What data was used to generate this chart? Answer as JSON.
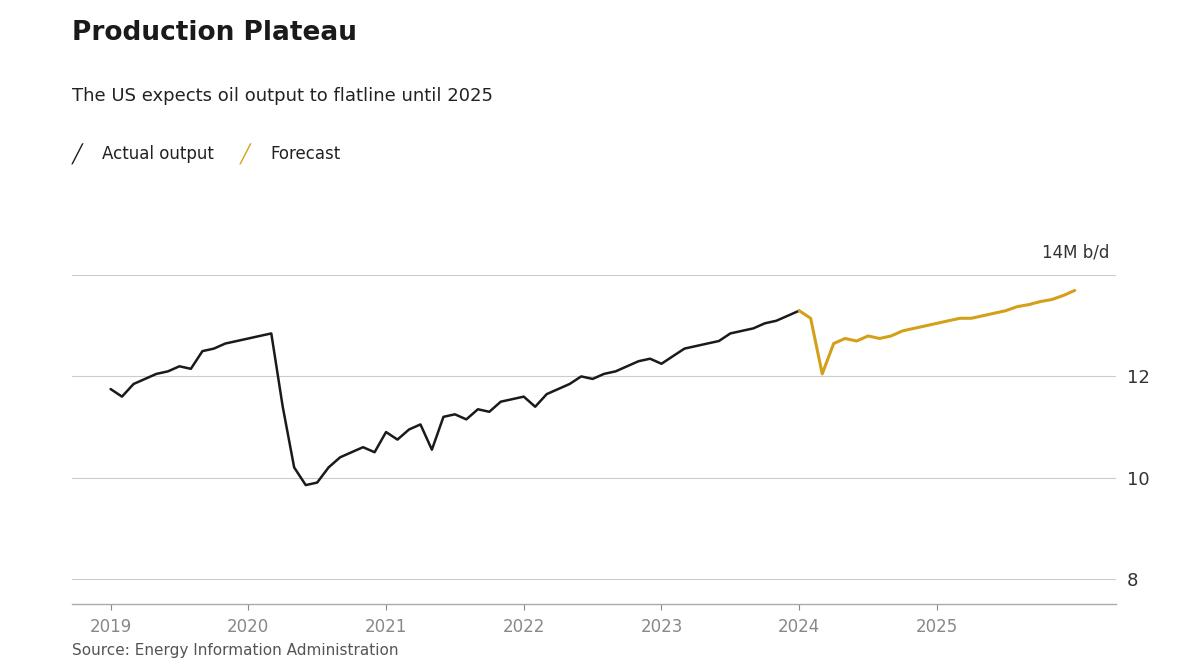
{
  "title": "Production Plateau",
  "subtitle": "The US expects oil output to flatline until 2025",
  "ylabel_text": "14M b/d",
  "source": "Source: Energy Information Administration",
  "legend_actual": "Actual output",
  "legend_forecast": "Forecast",
  "actual_color": "#1a1a1a",
  "forecast_color": "#D4A017",
  "background_color": "#ffffff",
  "grid_color": "#cccccc",
  "ylim": [
    7.5,
    14.8
  ],
  "yticks": [
    8,
    10,
    12
  ],
  "top_gridline_y": 14.0,
  "actual_x": [
    2019.0,
    2019.083,
    2019.167,
    2019.25,
    2019.333,
    2019.417,
    2019.5,
    2019.583,
    2019.667,
    2019.75,
    2019.833,
    2019.917,
    2020.0,
    2020.083,
    2020.167,
    2020.25,
    2020.333,
    2020.417,
    2020.5,
    2020.583,
    2020.667,
    2020.75,
    2020.833,
    2020.917,
    2021.0,
    2021.083,
    2021.167,
    2021.25,
    2021.333,
    2021.417,
    2021.5,
    2021.583,
    2021.667,
    2021.75,
    2021.833,
    2021.917,
    2022.0,
    2022.083,
    2022.167,
    2022.25,
    2022.333,
    2022.417,
    2022.5,
    2022.583,
    2022.667,
    2022.75,
    2022.833,
    2022.917,
    2023.0,
    2023.083,
    2023.167,
    2023.25,
    2023.333,
    2023.417,
    2023.5,
    2023.583,
    2023.667,
    2023.75,
    2023.833,
    2023.917,
    2024.0
  ],
  "actual_y": [
    11.75,
    11.6,
    11.85,
    11.95,
    12.05,
    12.1,
    12.2,
    12.15,
    12.5,
    12.55,
    12.65,
    12.7,
    12.75,
    12.8,
    12.85,
    11.4,
    10.2,
    9.85,
    9.9,
    10.2,
    10.4,
    10.5,
    10.6,
    10.5,
    10.9,
    10.75,
    10.95,
    11.05,
    10.55,
    11.2,
    11.25,
    11.15,
    11.35,
    11.3,
    11.5,
    11.55,
    11.6,
    11.4,
    11.65,
    11.75,
    11.85,
    12.0,
    11.95,
    12.05,
    12.1,
    12.2,
    12.3,
    12.35,
    12.25,
    12.4,
    12.55,
    12.6,
    12.65,
    12.7,
    12.85,
    12.9,
    12.95,
    13.05,
    13.1,
    13.2,
    13.3
  ],
  "forecast_x": [
    2024.0,
    2024.083,
    2024.167,
    2024.25,
    2024.333,
    2024.417,
    2024.5,
    2024.583,
    2024.667,
    2024.75,
    2024.833,
    2024.917,
    2025.0,
    2025.083,
    2025.167,
    2025.25,
    2025.333,
    2025.417,
    2025.5,
    2025.583,
    2025.667,
    2025.75,
    2025.833,
    2025.917,
    2026.0
  ],
  "forecast_y": [
    13.3,
    13.15,
    12.05,
    12.65,
    12.75,
    12.7,
    12.8,
    12.75,
    12.8,
    12.9,
    12.95,
    13.0,
    13.05,
    13.1,
    13.15,
    13.15,
    13.2,
    13.25,
    13.3,
    13.38,
    13.42,
    13.48,
    13.52,
    13.6,
    13.7
  ],
  "xlim": [
    2018.72,
    2026.3
  ],
  "xtick_positions": [
    2019,
    2020,
    2021,
    2022,
    2023,
    2024,
    2025
  ],
  "xtick_labels": [
    "2019",
    "2020",
    "2021",
    "2022",
    "2023",
    "2024",
    "2025"
  ]
}
